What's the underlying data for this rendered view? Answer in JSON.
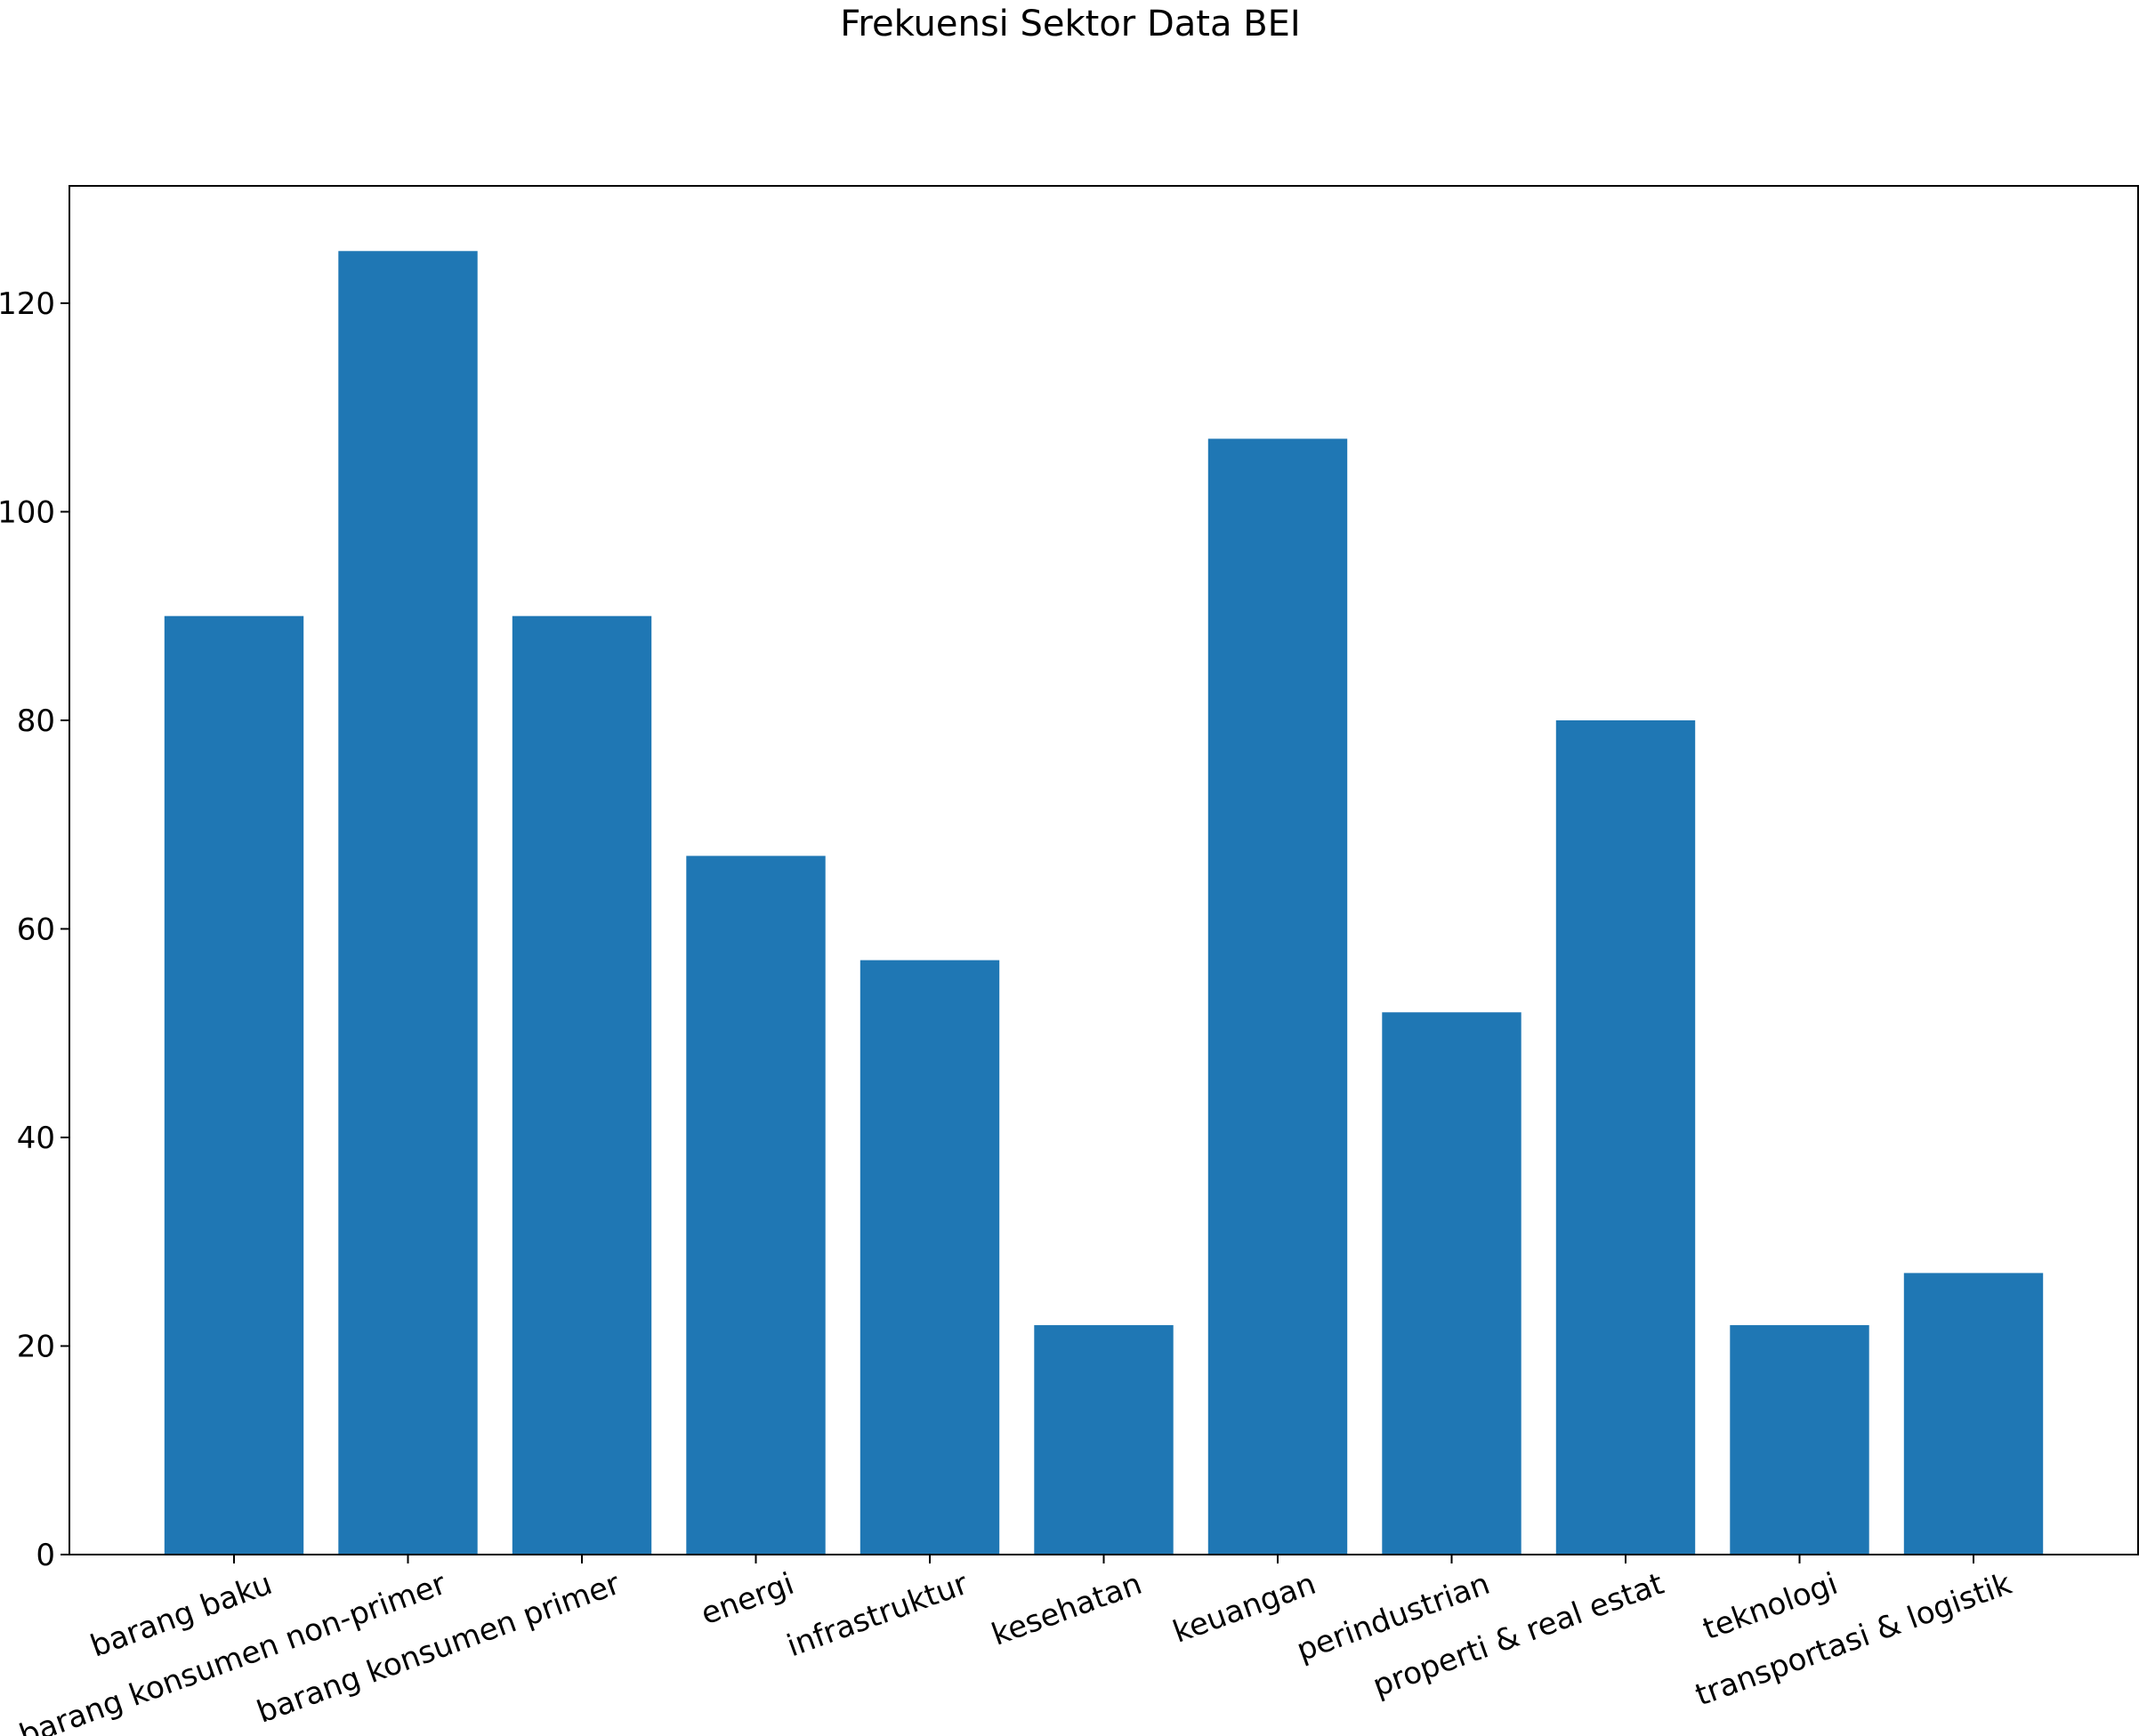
{
  "chart_data": {
    "type": "bar",
    "title": "Frekuensi Sektor Data BEI",
    "xlabel": "",
    "ylabel": "",
    "categories": [
      "barang baku",
      "barang konsumen non-primer",
      "barang konsumen primer",
      "energi",
      "infrastruktur",
      "kesehatan",
      "keuangan",
      "perindustrian",
      "properti & real estat",
      "teknologi",
      "transportasi & logistik"
    ],
    "values": [
      90,
      125,
      90,
      67,
      57,
      22,
      107,
      52,
      80,
      22,
      27
    ],
    "ylim": [
      0,
      131.25
    ],
    "yticks": [
      0,
      20,
      40,
      60,
      80,
      100,
      120
    ],
    "grid": false,
    "bar_color": "#1f77b4",
    "xtick_rotation_deg": -20
  }
}
